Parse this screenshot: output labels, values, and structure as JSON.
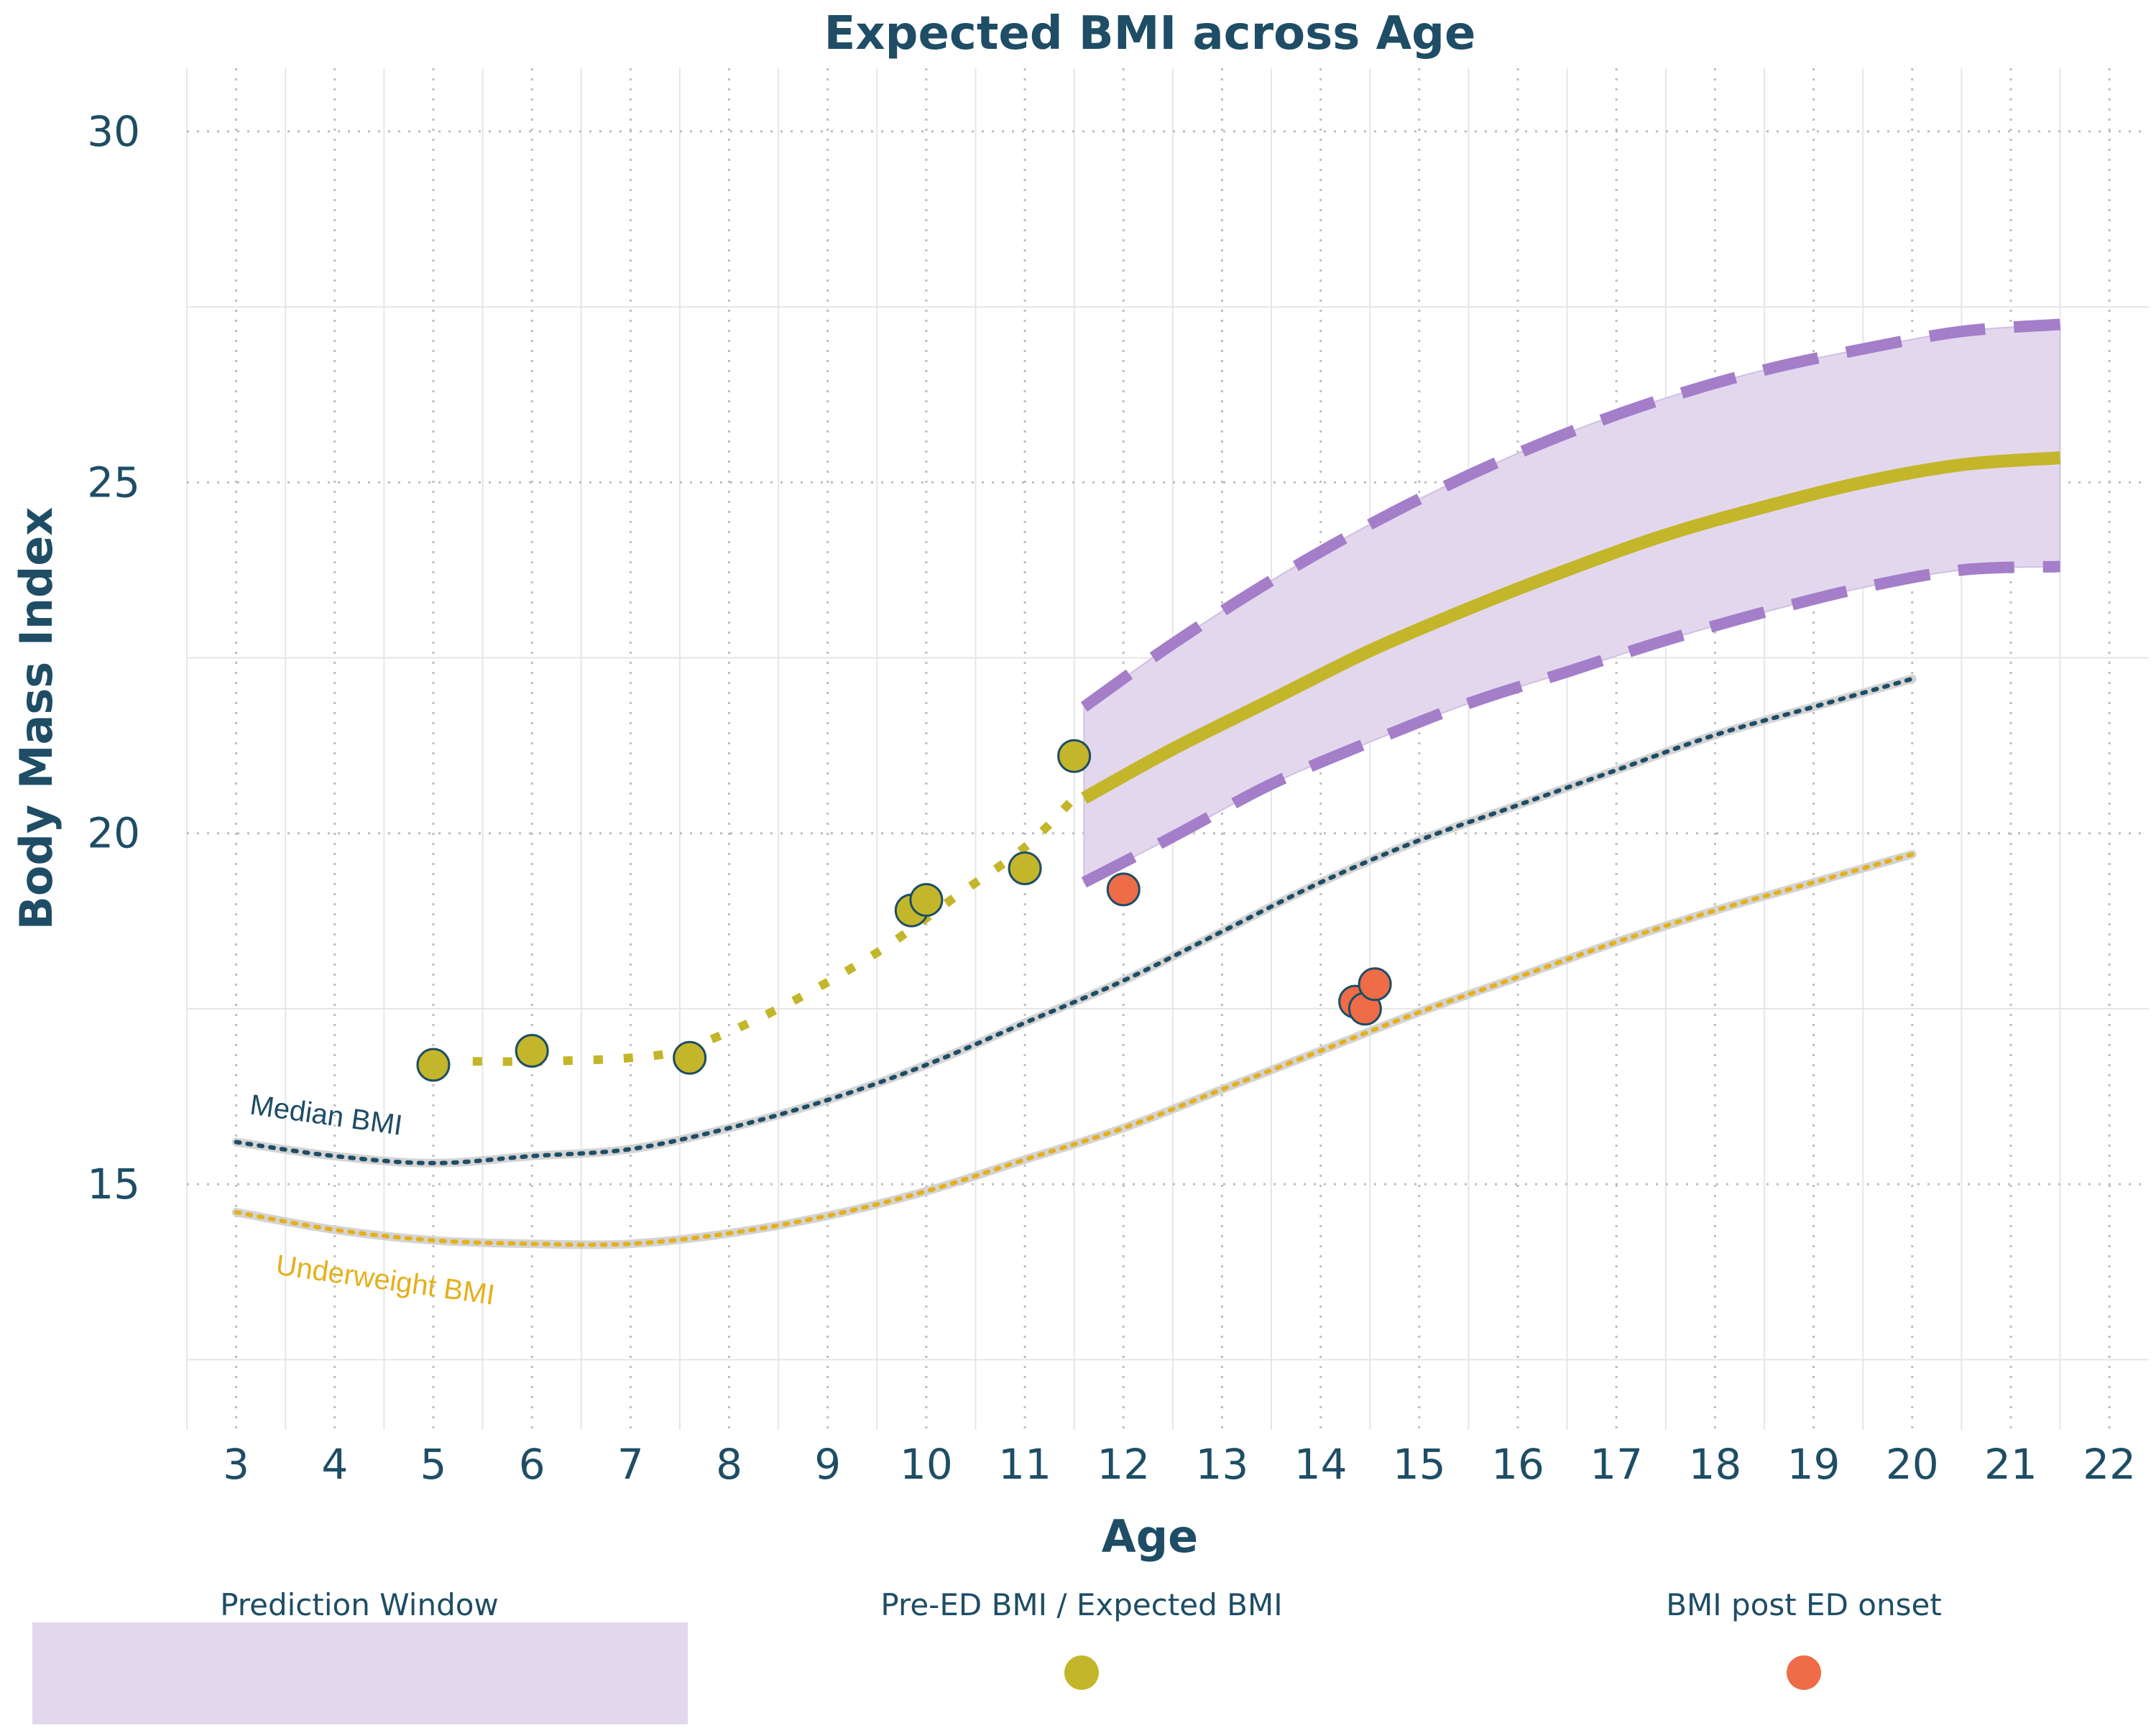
{
  "colors": {
    "text": "#1e4d65",
    "pre_ed": "#c3b62a",
    "post_ed": "#ee6c47",
    "window_fill": "#e3d7ee",
    "window_edge": "#a47ec9",
    "median": "#1e4d65",
    "underweight": "#e4b01c",
    "reference_shadow": "#d4d4d4",
    "grid_major": "#bdbdbd",
    "grid_minor": "#e6e6e6"
  },
  "chart_data": {
    "type": "line",
    "title": "Expected BMI across Age",
    "xlabel": "Age",
    "ylabel": "Body Mass Index",
    "xlim": [
      2.5,
      22.4
    ],
    "ylim": [
      11.5,
      30.9
    ],
    "xticks": [
      3,
      4,
      5,
      6,
      7,
      8,
      9,
      10,
      11,
      12,
      13,
      14,
      15,
      16,
      17,
      18,
      19,
      20,
      21,
      22
    ],
    "yticks": [
      15,
      20,
      25,
      30
    ],
    "grid": true,
    "legend_position": "bottom",
    "legend": [
      {
        "key": "prediction_window",
        "label": "Prediction Window",
        "symbol": "rect"
      },
      {
        "key": "pre_ed",
        "label": "Pre-ED BMI / Expected BMI",
        "symbol": "dot"
      },
      {
        "key": "post_ed",
        "label": "BMI post ED onset",
        "symbol": "dot"
      }
    ],
    "series": [
      {
        "name": "Median BMI",
        "style": "dotted",
        "x": [
          3,
          4,
          5,
          6,
          7,
          8,
          9,
          10,
          11,
          12,
          13,
          14,
          15,
          16,
          17,
          18,
          19,
          20
        ],
        "y": [
          15.6,
          15.4,
          15.3,
          15.4,
          15.5,
          15.8,
          16.2,
          16.7,
          17.3,
          17.9,
          18.6,
          19.3,
          19.9,
          20.4,
          20.9,
          21.4,
          21.8,
          22.2
        ]
      },
      {
        "name": "Underweight BMI",
        "style": "dotted",
        "x": [
          3,
          4,
          5,
          6,
          7,
          8,
          9,
          10,
          11,
          12,
          13,
          14,
          15,
          16,
          17,
          18,
          19,
          20
        ],
        "y": [
          14.6,
          14.35,
          14.2,
          14.15,
          14.15,
          14.3,
          14.55,
          14.9,
          15.35,
          15.8,
          16.35,
          16.9,
          17.45,
          17.95,
          18.45,
          18.9,
          19.3,
          19.7
        ]
      },
      {
        "name": "Pre-ED BMI trend",
        "style": "dotted",
        "x": [
          5.4,
          6,
          7,
          7.6,
          8.5,
          9.5,
          10.3,
          11,
          11.5
        ],
        "y": [
          16.75,
          16.75,
          16.8,
          16.95,
          17.5,
          18.3,
          19.1,
          19.8,
          20.5
        ]
      },
      {
        "name": "Expected BMI",
        "style": "solid",
        "x": [
          11.6,
          12.5,
          13.5,
          14.5,
          15.5,
          16.5,
          17.5,
          18.5,
          19.5,
          20.5,
          21.5
        ],
        "y": [
          20.5,
          21.2,
          21.9,
          22.6,
          23.2,
          23.75,
          24.25,
          24.65,
          25.0,
          25.25,
          25.35
        ]
      },
      {
        "name": "Prediction Window upper",
        "style": "dashed",
        "x": [
          11.6,
          12.5,
          13.5,
          14.5,
          15.5,
          16.5,
          17.5,
          18.5,
          19.5,
          20.5,
          21.5
        ],
        "y": [
          21.8,
          22.7,
          23.6,
          24.4,
          25.1,
          25.7,
          26.2,
          26.6,
          26.9,
          27.15,
          27.25
        ]
      },
      {
        "name": "Prediction Window lower",
        "style": "dashed",
        "x": [
          11.6,
          12.5,
          13.5,
          14.5,
          15.5,
          16.5,
          17.5,
          18.5,
          19.5,
          20.5,
          21.5
        ],
        "y": [
          19.3,
          19.95,
          20.7,
          21.3,
          21.85,
          22.3,
          22.75,
          23.15,
          23.5,
          23.75,
          23.8
        ]
      },
      {
        "name": "Pre-ED BMI",
        "style": "points",
        "points": [
          {
            "x": 5.0,
            "y": 16.7
          },
          {
            "x": 6.0,
            "y": 16.9
          },
          {
            "x": 7.6,
            "y": 16.8
          },
          {
            "x": 9.85,
            "y": 18.9
          },
          {
            "x": 10.0,
            "y": 19.05
          },
          {
            "x": 11.0,
            "y": 19.5
          },
          {
            "x": 11.5,
            "y": 21.1
          }
        ]
      },
      {
        "name": "BMI post ED onset",
        "style": "points",
        "points": [
          {
            "x": 12.0,
            "y": 19.2
          },
          {
            "x": 14.35,
            "y": 17.6
          },
          {
            "x": 14.45,
            "y": 17.5
          },
          {
            "x": 14.55,
            "y": 17.85
          }
        ]
      }
    ],
    "annotations": [
      {
        "key": "median",
        "text": "Median BMI",
        "x": 3.9,
        "y": 15.85,
        "angle": 8
      },
      {
        "key": "underweight",
        "text": "Underweight BMI",
        "x": 4.5,
        "y": 13.5,
        "angle": 8
      }
    ]
  }
}
